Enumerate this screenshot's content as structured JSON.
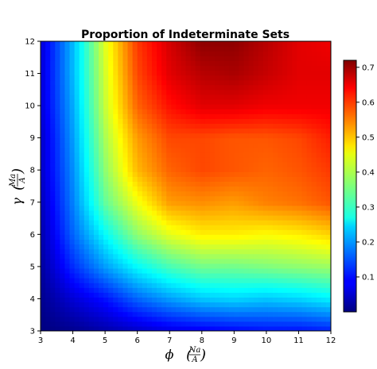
{
  "chart_data": {
    "type": "heatmap",
    "title": "Proportion of Indeterminate Sets",
    "xlabel": "ϕ",
    "xlabel_unit_num": "Na",
    "xlabel_unit_den": "A",
    "ylabel": "γ",
    "ylabel_unit_num": "Ma",
    "ylabel_unit_den": "A",
    "xlim": [
      3,
      12
    ],
    "ylim": [
      3,
      12
    ],
    "x_ticks": [
      3,
      4,
      5,
      6,
      7,
      8,
      9,
      10,
      11,
      12
    ],
    "y_ticks": [
      3,
      4,
      5,
      6,
      7,
      8,
      9,
      10,
      11,
      12
    ],
    "x_tick_labels": [
      "3",
      "4",
      "5",
      "6",
      "7",
      "8",
      "9",
      "10",
      "11",
      "12"
    ],
    "y_tick_labels": [
      "3",
      "4",
      "5",
      "6",
      "7",
      "8",
      "9",
      "10",
      "11",
      "12"
    ],
    "colormap": "jet",
    "colorbar": {
      "min": 0.0,
      "max": 0.72,
      "ticks": [
        0.1,
        0.2,
        0.3,
        0.4,
        0.5,
        0.6,
        0.7
      ],
      "tick_labels": [
        "0.1",
        "0.2",
        "0.3",
        "0.4",
        "0.5",
        "0.6",
        "0.7"
      ]
    },
    "x": [
      3,
      4,
      5,
      6,
      7,
      8,
      9,
      10,
      11,
      12
    ],
    "y": [
      3,
      4,
      5,
      6,
      7,
      8,
      9,
      10,
      11,
      12
    ],
    "z": [
      [
        0.0,
        0.01,
        0.03,
        0.05,
        0.07,
        0.08,
        0.09,
        0.1,
        0.1,
        0.11
      ],
      [
        0.01,
        0.06,
        0.1,
        0.16,
        0.2,
        0.23,
        0.24,
        0.23,
        0.24,
        0.26
      ],
      [
        0.02,
        0.12,
        0.2,
        0.27,
        0.32,
        0.35,
        0.35,
        0.36,
        0.37,
        0.38
      ],
      [
        0.03,
        0.16,
        0.27,
        0.37,
        0.43,
        0.46,
        0.46,
        0.45,
        0.46,
        0.48
      ],
      [
        0.04,
        0.18,
        0.34,
        0.44,
        0.52,
        0.53,
        0.52,
        0.54,
        0.55,
        0.57
      ],
      [
        0.05,
        0.19,
        0.37,
        0.5,
        0.56,
        0.58,
        0.57,
        0.56,
        0.57,
        0.59
      ],
      [
        0.05,
        0.2,
        0.39,
        0.52,
        0.58,
        0.58,
        0.57,
        0.57,
        0.58,
        0.61
      ],
      [
        0.06,
        0.21,
        0.41,
        0.56,
        0.62,
        0.65,
        0.65,
        0.64,
        0.64,
        0.64
      ],
      [
        0.06,
        0.22,
        0.42,
        0.58,
        0.65,
        0.68,
        0.69,
        0.67,
        0.65,
        0.65
      ],
      [
        0.06,
        0.22,
        0.43,
        0.59,
        0.66,
        0.71,
        0.71,
        0.68,
        0.65,
        0.64
      ]
    ]
  }
}
